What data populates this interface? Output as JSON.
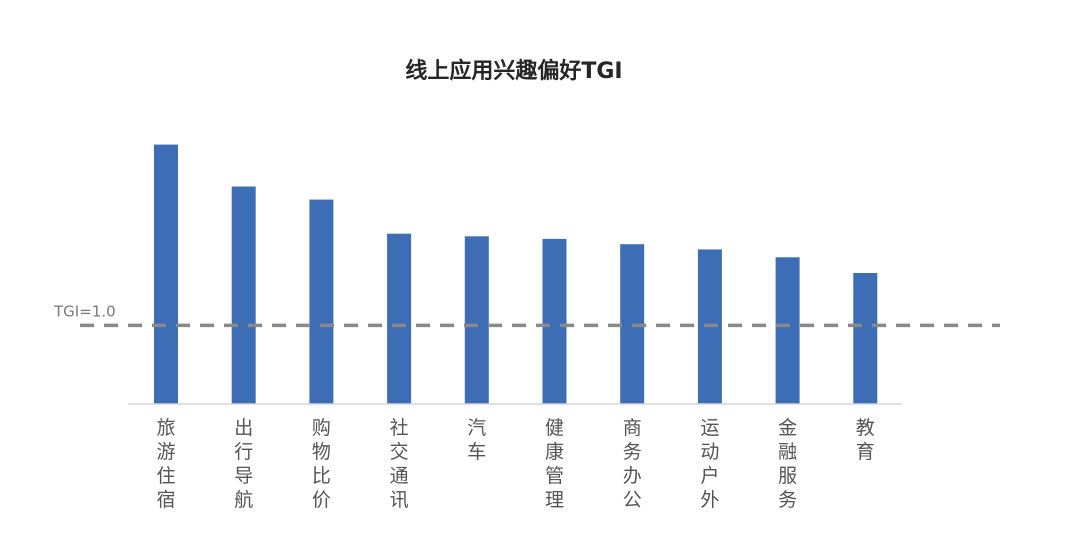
{
  "chart_data": {
    "type": "bar",
    "title": "线上应用兴趣偏好TGI",
    "categories": [
      "旅游住宿",
      "出行导航",
      "购物比价",
      "社交通讯",
      "汽车",
      "健康管理",
      "商务办公",
      "运动户外",
      "金融服务",
      "教育"
    ],
    "values": [
      1.69,
      1.53,
      1.48,
      1.35,
      1.34,
      1.33,
      1.31,
      1.29,
      1.26,
      1.2
    ],
    "reference_line": {
      "label": "TGI=1.0",
      "value": 1.0
    },
    "xlabel": "",
    "ylabel": "",
    "ylim": [
      0.7,
      1.7
    ],
    "grid": false,
    "legend": "none",
    "colors": {
      "bar": "#3d6eb5",
      "reference": "#8a8a8a"
    }
  }
}
